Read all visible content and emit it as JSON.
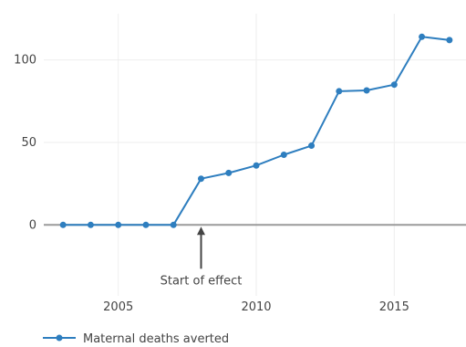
{
  "chart_data": {
    "type": "line",
    "title": "",
    "xlabel": "",
    "ylabel": "",
    "xlim": [
      2002.3,
      2017.6
    ],
    "ylim": [
      -43,
      128
    ],
    "x_ticks": [
      2005,
      2010,
      2015
    ],
    "y_ticks": [
      0,
      50,
      100
    ],
    "x_tick_labels": [
      "2005",
      "2010",
      "2015"
    ],
    "y_tick_labels": [
      "0",
      "50",
      "100"
    ],
    "grid": true,
    "legend_position": "bottom-left",
    "series": [
      {
        "name": "Maternal deaths averted",
        "color": "#2e7ebf",
        "x": [
          2003,
          2004,
          2005,
          2006,
          2007,
          2008,
          2009,
          2010,
          2011,
          2012,
          2013,
          2014,
          2015,
          2016,
          2017
        ],
        "y": [
          0,
          0,
          0,
          0,
          0,
          28,
          31.5,
          36,
          42.5,
          48,
          81,
          81.5,
          85,
          114,
          112
        ]
      }
    ],
    "annotations": [
      {
        "text": "Start of effect",
        "x": 2008,
        "y": 0
      }
    ],
    "zero_line_color": "#9a9a9a",
    "arrow_color": "#444444"
  }
}
